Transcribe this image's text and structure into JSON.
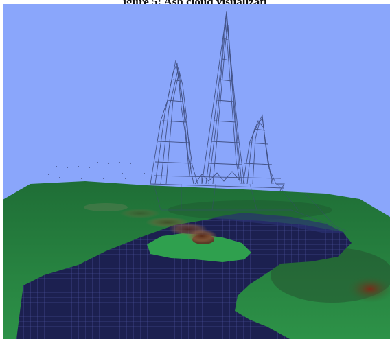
{
  "figure": {
    "title": "igure 5: Ash cloud visualizati"
  },
  "colors": {
    "sky": "#8aa6fb",
    "land_green": "#2f9a4c",
    "land_dark": "#1f6a34",
    "land_brown": "#6b3a22",
    "water": "#1b1f4c",
    "water_grid": "#6a70c8",
    "wireframe": "#3c4a7a",
    "ash": "#7b4a30"
  }
}
